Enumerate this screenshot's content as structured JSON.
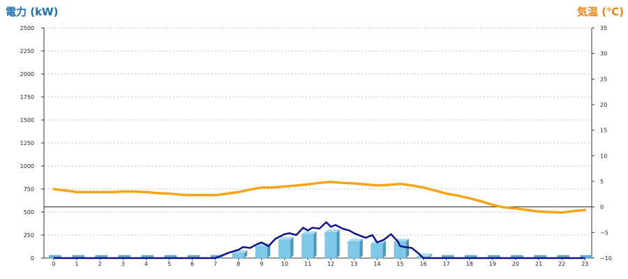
{
  "chart_data": {
    "type": "bar+line",
    "titles": {
      "left": "電力 (kW)",
      "right": "気温 (℃)"
    },
    "x_ticks": [
      "0",
      "1",
      "2",
      "3",
      "4",
      "5",
      "6",
      "7",
      "8",
      "9",
      "10",
      "11",
      "12",
      "13",
      "14",
      "15",
      "16",
      "17",
      "18",
      "19",
      "20",
      "21",
      "22",
      "23"
    ],
    "y_left": {
      "ticks": [
        "0",
        "250",
        "500",
        "750",
        "1000",
        "1250",
        "1500",
        "1750",
        "2000",
        "2250",
        "2500"
      ],
      "lim": [
        0,
        2500
      ]
    },
    "y_right": {
      "ticks": [
        "−10",
        "−5",
        "0",
        "5",
        "10",
        "15",
        "20",
        "25",
        "30",
        "35"
      ],
      "lim": [
        -10,
        35
      ]
    },
    "grid": true,
    "bars": {
      "name": "電力 hourly",
      "color": "#7ec8e8",
      "categories": [
        0,
        1,
        2,
        3,
        4,
        5,
        6,
        7,
        8,
        9,
        10,
        11,
        12,
        13,
        14,
        15,
        16,
        17,
        18,
        19,
        20,
        21,
        22,
        23
      ],
      "values": [
        0,
        0,
        0,
        0,
        0,
        0,
        0,
        0,
        55,
        130,
        200,
        260,
        280,
        180,
        160,
        180,
        20,
        0,
        0,
        0,
        0,
        0,
        0,
        0
      ]
    },
    "power_line": {
      "color": "#10108c",
      "x": [
        0,
        1,
        2,
        3,
        4,
        5,
        6,
        7,
        7.3,
        7.6,
        8,
        8.2,
        8.5,
        8.8,
        9,
        9.3,
        9.6,
        10,
        10.2,
        10.5,
        10.8,
        11,
        11.2,
        11.5,
        11.8,
        12,
        12.2,
        12.5,
        12.8,
        13,
        13.3,
        13.5,
        13.8,
        14,
        14.3,
        14.6,
        14.9,
        15,
        15.2,
        15.5,
        15.8,
        16,
        17,
        18,
        19,
        20,
        21,
        22,
        23
      ],
      "y": [
        0,
        0,
        0,
        0,
        0,
        0,
        0,
        0,
        30,
        60,
        90,
        120,
        110,
        150,
        170,
        130,
        210,
        260,
        270,
        250,
        330,
        300,
        330,
        320,
        390,
        340,
        360,
        320,
        300,
        270,
        240,
        220,
        250,
        170,
        200,
        260,
        180,
        130,
        120,
        110,
        50,
        0,
        0,
        0,
        0,
        0,
        0,
        0,
        0
      ]
    },
    "temp_line": {
      "color": "#f5a516",
      "x": [
        0,
        0.5,
        1,
        1.5,
        2,
        2.5,
        3,
        3.5,
        4,
        4.5,
        5,
        5.5,
        6,
        6.5,
        7,
        7.5,
        8,
        8.5,
        9,
        9.5,
        10,
        10.5,
        11,
        11.5,
        12,
        12.5,
        13,
        13.5,
        14,
        14.5,
        15,
        15.5,
        16,
        16.5,
        17,
        17.5,
        18,
        18.5,
        19,
        19.5,
        20,
        20.5,
        21,
        21.5,
        22,
        22.5,
        23
      ],
      "y": [
        3.5,
        3.2,
        2.9,
        2.9,
        2.9,
        2.9,
        3.0,
        3.0,
        2.9,
        2.7,
        2.6,
        2.4,
        2.3,
        2.3,
        2.3,
        2.6,
        2.9,
        3.4,
        3.8,
        3.8,
        4.0,
        4.2,
        4.4,
        4.7,
        4.9,
        4.7,
        4.6,
        4.4,
        4.2,
        4.3,
        4.5,
        4.2,
        3.8,
        3.2,
        2.6,
        2.2,
        1.7,
        1.1,
        0.4,
        -0.1,
        -0.3,
        -0.6,
        -0.9,
        -1.0,
        -1.1,
        -0.8,
        -0.6
      ]
    }
  }
}
